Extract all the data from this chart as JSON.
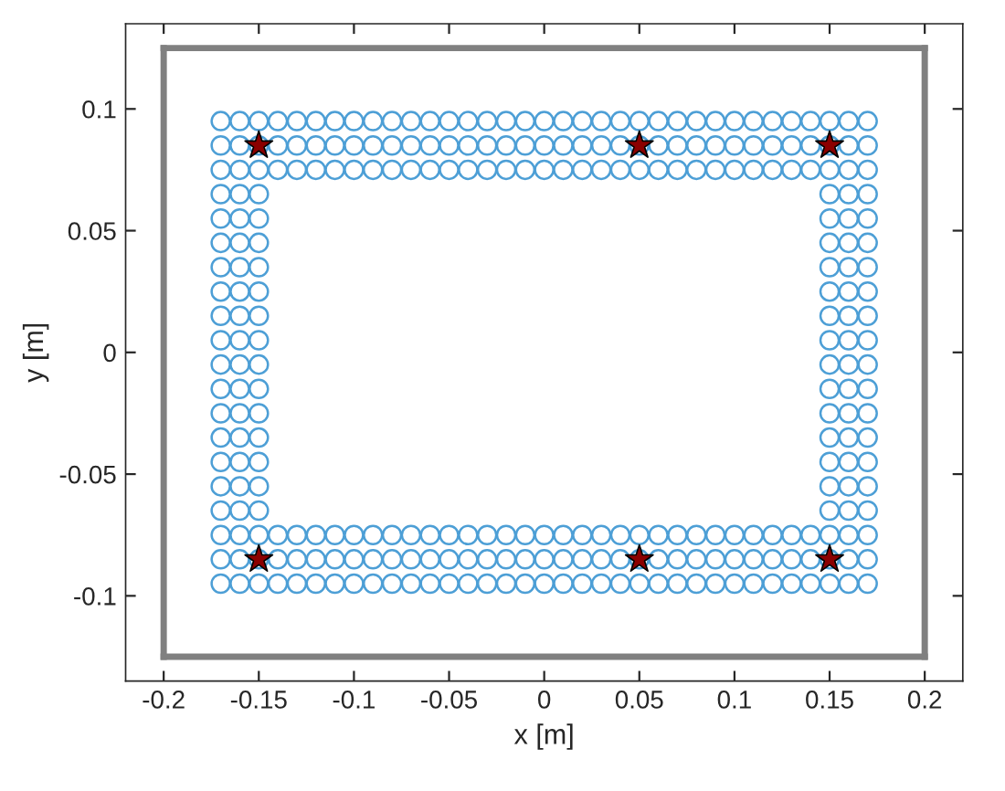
{
  "chart_data": {
    "type": "scatter",
    "xlabel": "x [m]",
    "ylabel": "y [m]",
    "xlim": [
      -0.22,
      0.22
    ],
    "ylim": [
      -0.135,
      0.135
    ],
    "xticks": [
      -0.2,
      -0.15,
      -0.1,
      -0.05,
      0,
      0.05,
      0.1,
      0.15,
      0.2
    ],
    "yticks": [
      -0.1,
      -0.05,
      0,
      0.05,
      0.1
    ],
    "grid": false,
    "series": [
      {
        "type": "line",
        "color": "#808080",
        "marker": "none",
        "line_style": "solid",
        "x": [
          -0.2,
          0.2
        ],
        "values": [
          0.125,
          0.125
        ]
      },
      {
        "type": "line",
        "color": "#808080",
        "marker": "none",
        "line_style": "solid",
        "x": [
          -0.2,
          0.2
        ],
        "values": [
          -0.125,
          -0.125
        ]
      },
      {
        "type": "line",
        "color": "#808080",
        "marker": "none",
        "line_style": "solid",
        "x": [
          -0.2,
          -0.2
        ],
        "values": [
          -0.125,
          0.125
        ]
      },
      {
        "type": "line",
        "color": "#808080",
        "marker": "none",
        "line_style": "solid",
        "x": [
          0.2,
          0.2
        ],
        "values": [
          -0.125,
          0.125
        ]
      },
      {
        "color": "#4d9fd6",
        "marker": "circle",
        "x": [
          -0.17,
          -0.16,
          -0.15,
          -0.14,
          -0.13,
          -0.12,
          -0.11,
          -0.1,
          -0.09,
          -0.08,
          -0.07,
          -0.06,
          -0.05,
          -0.04,
          -0.03,
          -0.02,
          -0.01,
          0,
          0.01,
          0.02,
          0.03,
          0.04,
          0.05,
          0.06,
          0.07,
          0.08,
          0.09,
          0.1,
          0.11,
          0.12,
          0.13,
          0.14,
          0.15,
          0.16,
          0.17,
          -0.17,
          -0.16,
          -0.15,
          -0.14,
          -0.13,
          -0.12,
          -0.11,
          -0.1,
          -0.09,
          -0.08,
          -0.07,
          -0.06,
          -0.05,
          -0.04,
          -0.03,
          -0.02,
          -0.01,
          0,
          0.01,
          0.02,
          0.03,
          0.04,
          0.05,
          0.06,
          0.07,
          0.08,
          0.09,
          0.1,
          0.11,
          0.12,
          0.13,
          0.14,
          0.15,
          0.16,
          0.17,
          -0.17,
          -0.16,
          -0.15,
          -0.14,
          -0.13,
          -0.12,
          -0.11,
          -0.1,
          -0.09,
          -0.08,
          -0.07,
          -0.06,
          -0.05,
          -0.04,
          -0.03,
          -0.02,
          -0.01,
          0,
          0.01,
          0.02,
          0.03,
          0.04,
          0.05,
          0.06,
          0.07,
          0.08,
          0.09,
          0.1,
          0.11,
          0.12,
          0.13,
          0.14,
          0.15,
          0.16,
          0.17,
          -0.17,
          -0.16,
          -0.15,
          0.15,
          0.16,
          0.17,
          -0.17,
          -0.16,
          -0.15,
          0.15,
          0.16,
          0.17,
          -0.17,
          -0.16,
          -0.15,
          0.15,
          0.16,
          0.17,
          -0.17,
          -0.16,
          -0.15,
          0.15,
          0.16,
          0.17,
          -0.17,
          -0.16,
          -0.15,
          0.15,
          0.16,
          0.17,
          -0.17,
          -0.16,
          -0.15,
          0.15,
          0.16,
          0.17,
          -0.17,
          -0.16,
          -0.15,
          0.15,
          0.16,
          0.17,
          -0.17,
          -0.16,
          -0.15,
          0.15,
          0.16,
          0.17,
          -0.17,
          -0.16,
          -0.15,
          0.15,
          0.16,
          0.17,
          -0.17,
          -0.16,
          -0.15,
          0.15,
          0.16,
          0.17,
          -0.17,
          -0.16,
          -0.15,
          0.15,
          0.16,
          0.17,
          -0.17,
          -0.16,
          -0.15,
          0.15,
          0.16,
          0.17,
          -0.17,
          -0.16,
          -0.15,
          0.15,
          0.16,
          0.17,
          -0.17,
          -0.16,
          -0.15,
          0.15,
          0.16,
          0.17,
          -0.17,
          -0.16,
          -0.15,
          -0.14,
          -0.13,
          -0.12,
          -0.11,
          -0.1,
          -0.09,
          -0.08,
          -0.07,
          -0.06,
          -0.05,
          -0.04,
          -0.03,
          -0.02,
          -0.01,
          0,
          0.01,
          0.02,
          0.03,
          0.04,
          0.05,
          0.06,
          0.07,
          0.08,
          0.09,
          0.1,
          0.11,
          0.12,
          0.13,
          0.14,
          0.15,
          0.16,
          0.17,
          -0.17,
          -0.16,
          -0.15,
          -0.14,
          -0.13,
          -0.12,
          -0.11,
          -0.1,
          -0.09,
          -0.08,
          -0.07,
          -0.06,
          -0.05,
          -0.04,
          -0.03,
          -0.02,
          -0.01,
          0,
          0.01,
          0.02,
          0.03,
          0.04,
          0.05,
          0.06,
          0.07,
          0.08,
          0.09,
          0.1,
          0.11,
          0.12,
          0.13,
          0.14,
          0.15,
          0.16,
          0.17,
          -0.17,
          -0.16,
          -0.15,
          -0.14,
          -0.13,
          -0.12,
          -0.11,
          -0.1,
          -0.09,
          -0.08,
          -0.07,
          -0.06,
          -0.05,
          -0.04,
          -0.03,
          -0.02,
          -0.01,
          0,
          0.01,
          0.02,
          0.03,
          0.04,
          0.05,
          0.06,
          0.07,
          0.08,
          0.09,
          0.1,
          0.11,
          0.12,
          0.13,
          0.14,
          0.15,
          0.16,
          0.17
        ],
        "values": [
          0.095,
          0.095,
          0.095,
          0.095,
          0.095,
          0.095,
          0.095,
          0.095,
          0.095,
          0.095,
          0.095,
          0.095,
          0.095,
          0.095,
          0.095,
          0.095,
          0.095,
          0.095,
          0.095,
          0.095,
          0.095,
          0.095,
          0.095,
          0.095,
          0.095,
          0.095,
          0.095,
          0.095,
          0.095,
          0.095,
          0.095,
          0.095,
          0.095,
          0.095,
          0.095,
          0.085,
          0.085,
          0.085,
          0.085,
          0.085,
          0.085,
          0.085,
          0.085,
          0.085,
          0.085,
          0.085,
          0.085,
          0.085,
          0.085,
          0.085,
          0.085,
          0.085,
          0.085,
          0.085,
          0.085,
          0.085,
          0.085,
          0.085,
          0.085,
          0.085,
          0.085,
          0.085,
          0.085,
          0.085,
          0.085,
          0.085,
          0.085,
          0.085,
          0.085,
          0.085,
          0.075,
          0.075,
          0.075,
          0.075,
          0.075,
          0.075,
          0.075,
          0.075,
          0.075,
          0.075,
          0.075,
          0.075,
          0.075,
          0.075,
          0.075,
          0.075,
          0.075,
          0.075,
          0.075,
          0.075,
          0.075,
          0.075,
          0.075,
          0.075,
          0.075,
          0.075,
          0.075,
          0.075,
          0.075,
          0.075,
          0.075,
          0.075,
          0.075,
          0.075,
          0.075,
          0.065,
          0.065,
          0.065,
          0.065,
          0.065,
          0.065,
          0.055,
          0.055,
          0.055,
          0.055,
          0.055,
          0.055,
          0.045,
          0.045,
          0.045,
          0.045,
          0.045,
          0.045,
          0.035,
          0.035,
          0.035,
          0.035,
          0.035,
          0.035,
          0.025,
          0.025,
          0.025,
          0.025,
          0.025,
          0.025,
          0.015,
          0.015,
          0.015,
          0.015,
          0.015,
          0.015,
          0.005,
          0.005,
          0.005,
          0.005,
          0.005,
          0.005,
          -0.005,
          -0.005,
          -0.005,
          -0.005,
          -0.005,
          -0.005,
          -0.015,
          -0.015,
          -0.015,
          -0.015,
          -0.015,
          -0.015,
          -0.025,
          -0.025,
          -0.025,
          -0.025,
          -0.025,
          -0.025,
          -0.035,
          -0.035,
          -0.035,
          -0.035,
          -0.035,
          -0.035,
          -0.045,
          -0.045,
          -0.045,
          -0.045,
          -0.045,
          -0.045,
          -0.055,
          -0.055,
          -0.055,
          -0.055,
          -0.055,
          -0.055,
          -0.065,
          -0.065,
          -0.065,
          -0.065,
          -0.065,
          -0.065,
          -0.075,
          -0.075,
          -0.075,
          -0.075,
          -0.075,
          -0.075,
          -0.075,
          -0.075,
          -0.075,
          -0.075,
          -0.075,
          -0.075,
          -0.075,
          -0.075,
          -0.075,
          -0.075,
          -0.075,
          -0.075,
          -0.075,
          -0.075,
          -0.075,
          -0.075,
          -0.075,
          -0.075,
          -0.075,
          -0.075,
          -0.075,
          -0.075,
          -0.075,
          -0.075,
          -0.075,
          -0.075,
          -0.075,
          -0.075,
          -0.075,
          -0.085,
          -0.085,
          -0.085,
          -0.085,
          -0.085,
          -0.085,
          -0.085,
          -0.085,
          -0.085,
          -0.085,
          -0.085,
          -0.085,
          -0.085,
          -0.085,
          -0.085,
          -0.085,
          -0.085,
          -0.085,
          -0.085,
          -0.085,
          -0.085,
          -0.085,
          -0.085,
          -0.085,
          -0.085,
          -0.085,
          -0.085,
          -0.085,
          -0.085,
          -0.085,
          -0.085,
          -0.085,
          -0.085,
          -0.085,
          -0.085,
          -0.095,
          -0.095,
          -0.095,
          -0.095,
          -0.095,
          -0.095,
          -0.095,
          -0.095,
          -0.095,
          -0.095,
          -0.095,
          -0.095,
          -0.095,
          -0.095,
          -0.095,
          -0.095,
          -0.095,
          -0.095,
          -0.095,
          -0.095,
          -0.095,
          -0.095,
          -0.095,
          -0.095,
          -0.095,
          -0.095,
          -0.095,
          -0.095,
          -0.095,
          -0.095,
          -0.095,
          -0.095,
          -0.095,
          -0.095,
          -0.095
        ]
      },
      {
        "color": "#8b0000",
        "marker": "star",
        "x": [
          -0.15,
          0.05,
          0.15,
          -0.15,
          0.05,
          0.15
        ],
        "values": [
          0.085,
          0.085,
          0.085,
          -0.085,
          -0.085,
          -0.085
        ]
      }
    ]
  }
}
